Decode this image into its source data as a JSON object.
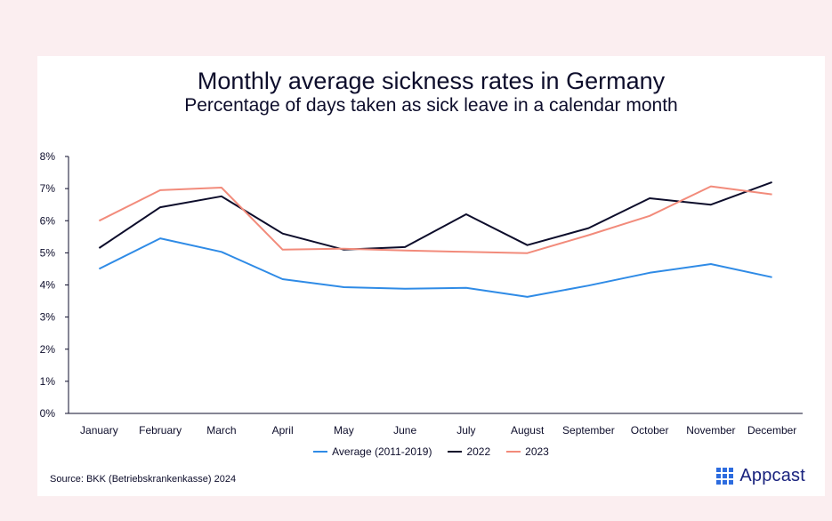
{
  "chart_data": {
    "type": "line",
    "title": "Monthly average sickness rates in Germany",
    "subtitle": "Percentage of days taken as sick leave in a calendar month",
    "categories": [
      "January",
      "February",
      "March",
      "April",
      "May",
      "June",
      "July",
      "August",
      "September",
      "October",
      "November",
      "December"
    ],
    "y_ticks": [
      "0%",
      "1%",
      "2%",
      "3%",
      "4%",
      "5%",
      "6%",
      "7%",
      "8%"
    ],
    "ylim": [
      0,
      8
    ],
    "grid": false,
    "legend_position": "bottom",
    "series": [
      {
        "name": "Average (2011-2019)",
        "color": "#2f8be6",
        "values": [
          4.5,
          5.45,
          5.03,
          4.18,
          3.93,
          3.88,
          3.91,
          3.63,
          3.98,
          4.38,
          4.65,
          4.24
        ]
      },
      {
        "name": "2022",
        "color": "#0d0d2b",
        "values": [
          5.15,
          6.42,
          6.76,
          5.6,
          5.1,
          5.18,
          6.2,
          5.24,
          5.77,
          6.7,
          6.5,
          7.2
        ]
      },
      {
        "name": "2023",
        "color": "#f28b7b",
        "values": [
          6.0,
          6.95,
          7.03,
          5.1,
          5.13,
          5.07,
          5.03,
          4.99,
          5.55,
          6.15,
          7.07,
          6.82
        ]
      }
    ],
    "source": "Source: BKK (Betriebskrankenkasse) 2024"
  },
  "branding": {
    "logo_text": "Appcast",
    "logo_color": "#2d6cdf"
  }
}
